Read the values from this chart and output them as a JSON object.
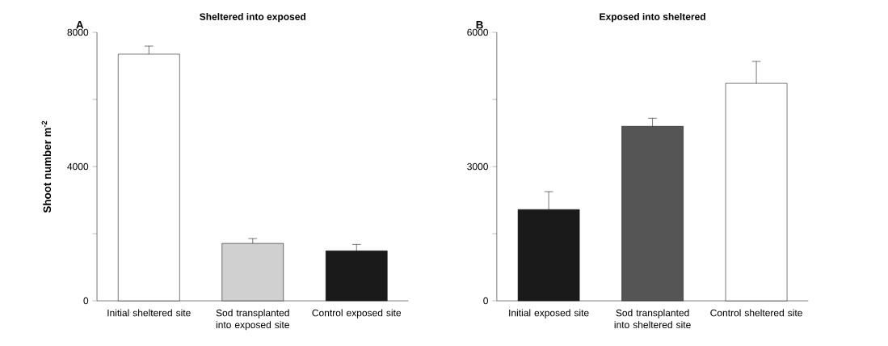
{
  "chart_data": [
    {
      "type": "bar",
      "title": "Sheltered into exposed",
      "ylabel": "Shoot number m$^{-2}$",
      "annotations": [
        "A"
      ],
      "categories": [
        "Initial sheltered site",
        "Sod transplanted into exposed site",
        "Control exposed site"
      ],
      "values": [
        7350,
        1710,
        1490
      ],
      "errors": [
        240,
        145,
        190
      ],
      "colors": [
        "#ffffff",
        "#d0d0d0",
        "#1a1a1a"
      ],
      "ylim": [
        0,
        8000
      ],
      "yticks": [
        0,
        {
          "value": 2000,
          "label": null
        },
        4000,
        {
          "value": 6000,
          "label": null
        },
        8000
      ]
    },
    {
      "type": "bar",
      "title": "Exposed into sheltered",
      "annotations": [
        "B"
      ],
      "categories": [
        "Initial exposed site",
        "Sod transplanted into sheltered site",
        "Control sheltered site"
      ],
      "values": [
        2040,
        3900,
        4860
      ],
      "errors": [
        400,
        180,
        490
      ],
      "colors": [
        "#1a1a1a",
        "#555555",
        "#ffffff"
      ],
      "ylim": [
        0,
        6000
      ],
      "yticks": [
        0,
        {
          "value": 1500,
          "label": null
        },
        3000,
        {
          "value": 4500,
          "label": null
        },
        6000
      ]
    }
  ]
}
